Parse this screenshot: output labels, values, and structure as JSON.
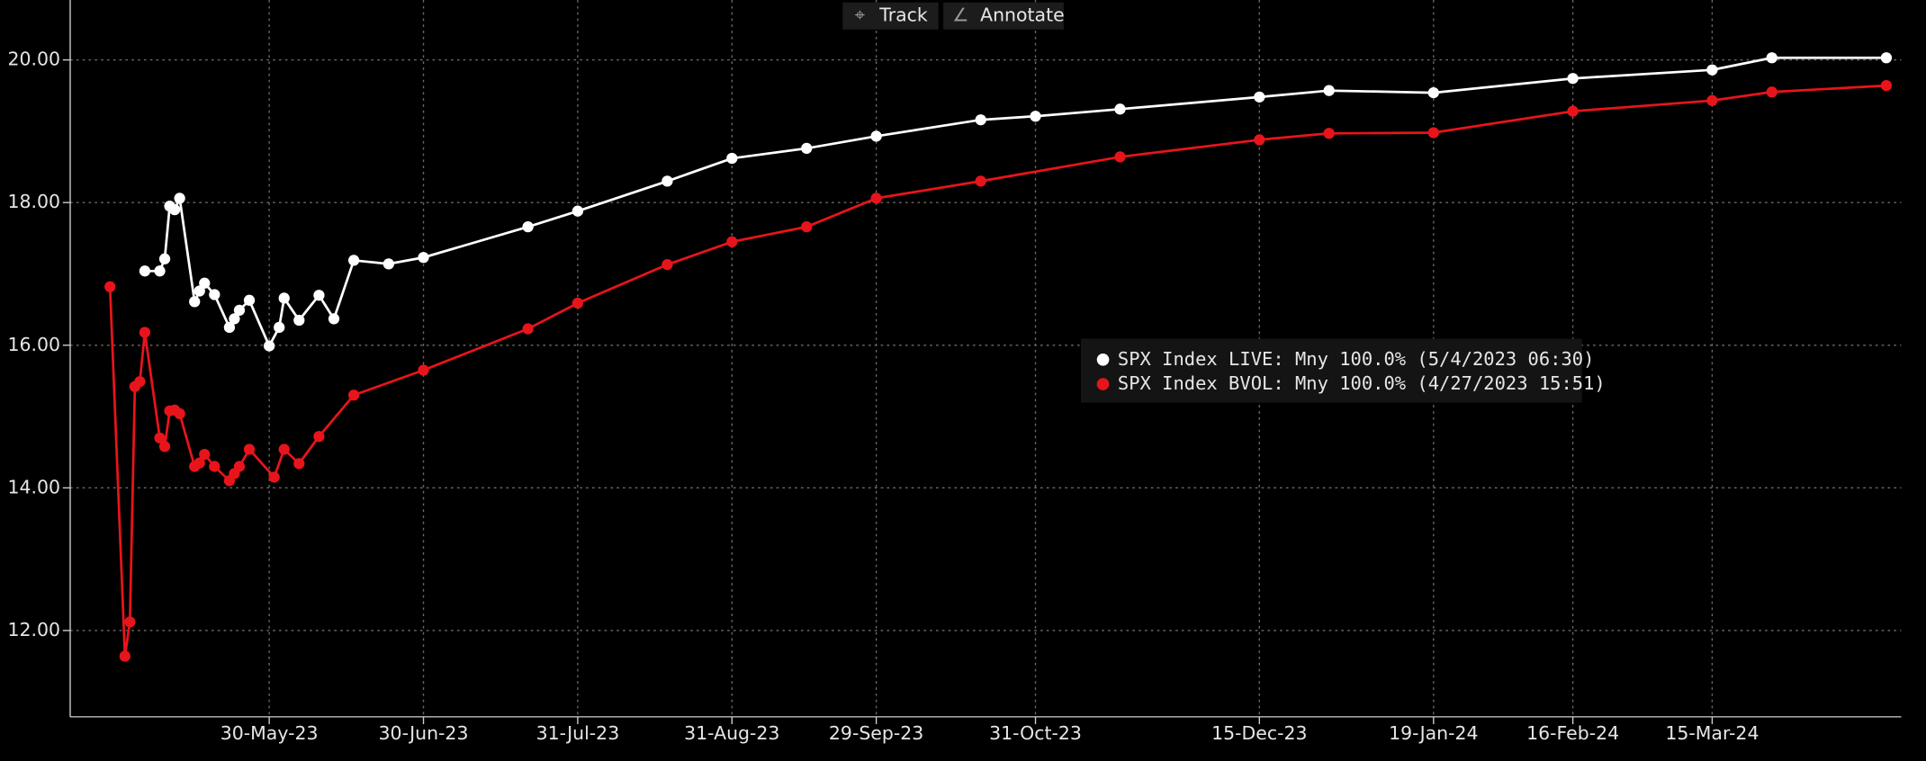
{
  "toolbar": {
    "track": "Track",
    "annotate": "Annotate"
  },
  "chart_data": {
    "type": "line",
    "xlim": [
      "2023-04-20",
      "2024-04-22"
    ],
    "xticks": [
      {
        "value": "2023-05-30",
        "label": "30-May-23"
      },
      {
        "value": "2023-06-30",
        "label": "30-Jun-23"
      },
      {
        "value": "2023-07-31",
        "label": "31-Jul-23"
      },
      {
        "value": "2023-08-31",
        "label": "31-Aug-23"
      },
      {
        "value": "2023-09-29",
        "label": "29-Sep-23"
      },
      {
        "value": "2023-10-31",
        "label": "31-Oct-23"
      },
      {
        "value": "2023-12-15",
        "label": "15-Dec-23"
      },
      {
        "value": "2024-01-19",
        "label": "19-Jan-24"
      },
      {
        "value": "2024-02-16",
        "label": "16-Feb-24"
      },
      {
        "value": "2024-03-15",
        "label": "15-Mar-24"
      }
    ],
    "ylim": [
      10.79,
      20.84
    ],
    "yticks": [
      {
        "value": 12,
        "label": "12.00"
      },
      {
        "value": 14,
        "label": "14.00"
      },
      {
        "value": 16,
        "label": "16.00"
      },
      {
        "value": 18,
        "label": "18.00"
      },
      {
        "value": 20,
        "label": "20.00"
      }
    ],
    "grid": true,
    "legend": "center-right",
    "series": [
      {
        "name": "SPX Index LIVE: Mny 100.0% (5/4/2023 06:30)",
        "color": "#ffffff",
        "x": [
          "2023-05-05",
          "2023-05-08",
          "2023-05-09",
          "2023-05-10",
          "2023-05-11",
          "2023-05-12",
          "2023-05-15",
          "2023-05-16",
          "2023-05-17",
          "2023-05-19",
          "2023-05-22",
          "2023-05-23",
          "2023-05-24",
          "2023-05-26",
          "2023-05-30",
          "2023-06-01",
          "2023-06-02",
          "2023-06-05",
          "2023-06-09",
          "2023-06-12",
          "2023-06-16",
          "2023-06-23",
          "2023-06-30",
          "2023-07-21",
          "2023-07-31",
          "2023-08-18",
          "2023-08-31",
          "2023-09-15",
          "2023-09-29",
          "2023-10-20",
          "2023-10-31",
          "2023-11-17",
          "2023-12-15",
          "2023-12-29",
          "2024-01-19",
          "2024-02-16",
          "2024-03-15",
          "2024-03-27",
          "2024-04-19"
        ],
        "values": [
          17.04,
          17.04,
          17.21,
          17.95,
          17.9,
          18.06,
          16.61,
          16.76,
          16.87,
          16.71,
          16.25,
          16.37,
          16.49,
          16.63,
          15.99,
          16.25,
          16.66,
          16.35,
          16.7,
          16.37,
          17.19,
          17.14,
          17.23,
          17.66,
          17.88,
          18.3,
          18.62,
          18.76,
          18.93,
          19.16,
          19.21,
          19.31,
          19.48,
          19.57,
          19.54,
          19.74,
          19.86,
          20.03,
          20.03
        ]
      },
      {
        "name": "SPX Index BVOL: Mny 100.0% (4/27/2023 15:51)",
        "color": "#e8141b",
        "x": [
          "2023-04-28",
          "2023-05-01",
          "2023-05-02",
          "2023-05-03",
          "2023-05-04",
          "2023-05-05",
          "2023-05-08",
          "2023-05-09",
          "2023-05-10",
          "2023-05-11",
          "2023-05-12",
          "2023-05-15",
          "2023-05-16",
          "2023-05-17",
          "2023-05-19",
          "2023-05-22",
          "2023-05-23",
          "2023-05-24",
          "2023-05-26",
          "2023-05-31",
          "2023-06-02",
          "2023-06-05",
          "2023-06-09",
          "2023-06-16",
          "2023-06-30",
          "2023-07-21",
          "2023-07-31",
          "2023-08-18",
          "2023-08-31",
          "2023-09-15",
          "2023-09-29",
          "2023-10-20",
          "2023-11-17",
          "2023-12-15",
          "2023-12-29",
          "2024-01-19",
          "2024-02-16",
          "2024-03-15",
          "2024-03-27",
          "2024-04-19"
        ],
        "values": [
          16.82,
          11.64,
          12.12,
          15.42,
          15.49,
          16.18,
          14.7,
          14.58,
          15.08,
          15.09,
          15.04,
          14.3,
          14.35,
          14.47,
          14.3,
          14.1,
          14.2,
          14.3,
          14.54,
          14.15,
          14.54,
          14.34,
          14.72,
          15.3,
          15.65,
          16.23,
          16.59,
          17.13,
          17.45,
          17.66,
          18.06,
          18.3,
          18.64,
          18.88,
          18.97,
          18.98,
          19.28,
          19.43,
          19.55,
          19.64
        ]
      }
    ]
  }
}
